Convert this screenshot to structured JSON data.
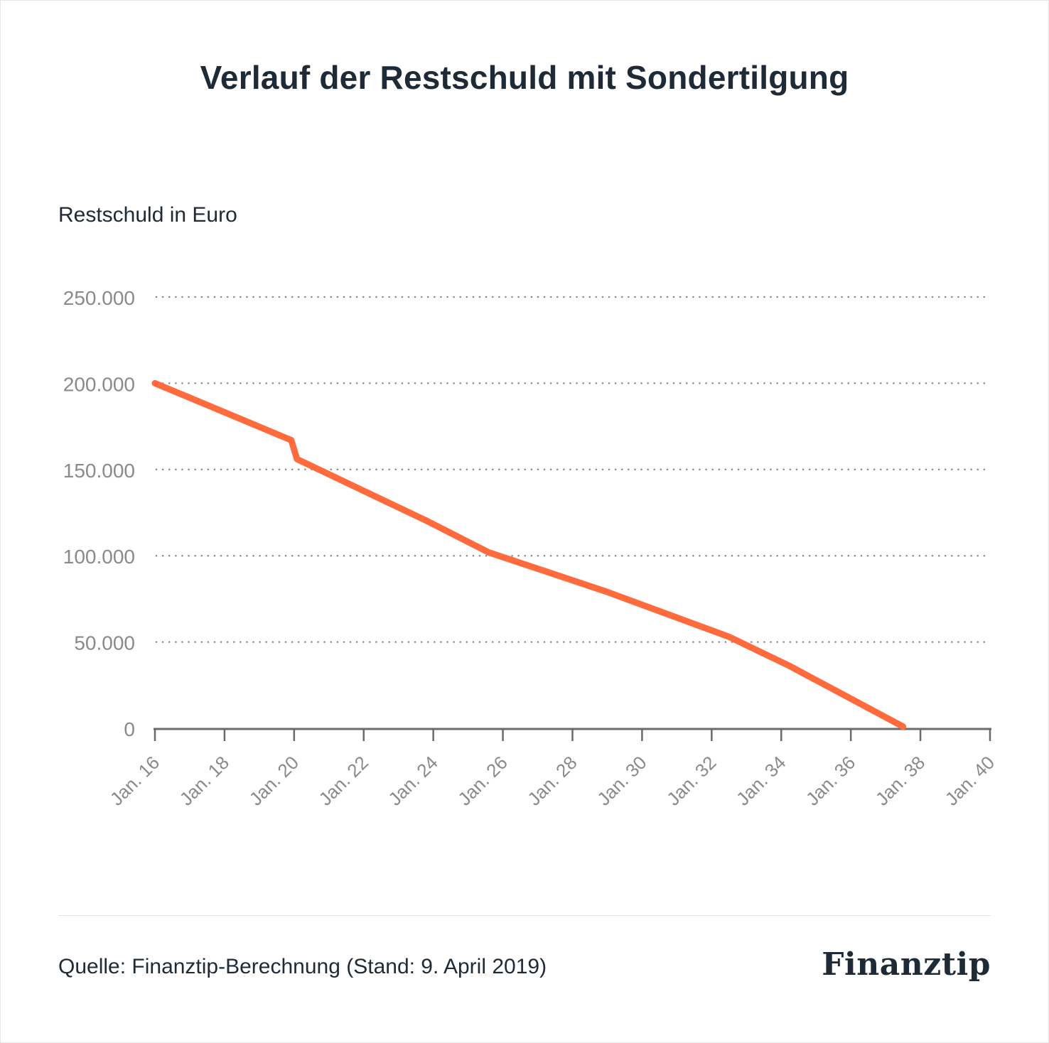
{
  "title": "Verlauf der Restschuld mit Sondertilgung",
  "colors": {
    "line": "#ff6b3d",
    "grid": "#8c8c8c",
    "axis": "#6b6b6b",
    "tick_label": "#8a8a8a",
    "text": "#1e2a36"
  },
  "footer": {
    "source": "Quelle: Finanztip-Berechnung (Stand: 9. April 2019)",
    "logo": "Finanztip"
  },
  "chart_data": {
    "type": "line",
    "title": "Verlauf der Restschuld mit Sondertilgung",
    "ylabel": "Restschuld in Euro",
    "xlabel": "",
    "x_ticks": [
      "Jan. 16",
      "Jan. 18",
      "Jan. 20",
      "Jan. 22",
      "Jan. 24",
      "Jan. 26",
      "Jan. 28",
      "Jan. 30",
      "Jan. 32",
      "Jan. 34",
      "Jan. 36",
      "Jan. 38",
      "Jan. 40"
    ],
    "y_ticks": [
      0,
      50000,
      100000,
      150000,
      200000,
      250000
    ],
    "y_tick_labels": [
      "0",
      "50.000",
      "100.000",
      "150.000",
      "200.000",
      "250.000"
    ],
    "xlim": [
      "2016-01",
      "2040-01"
    ],
    "ylim": [
      0,
      250000
    ],
    "grid": "horizontal dotted",
    "legend": "none",
    "series": [
      {
        "points": [
          {
            "x": "2016-01",
            "y": 200000
          },
          {
            "x": "2019-12",
            "y": 167000
          },
          {
            "x": "2020-02",
            "y": 156000
          },
          {
            "x": "2023-11",
            "y": 120000
          },
          {
            "x": "2025-08",
            "y": 102000
          },
          {
            "x": "2029-01",
            "y": 79000
          },
          {
            "x": "2032-07",
            "y": 53000
          },
          {
            "x": "2034-04",
            "y": 36000
          },
          {
            "x": "2037-07",
            "y": 1000
          }
        ]
      }
    ]
  }
}
